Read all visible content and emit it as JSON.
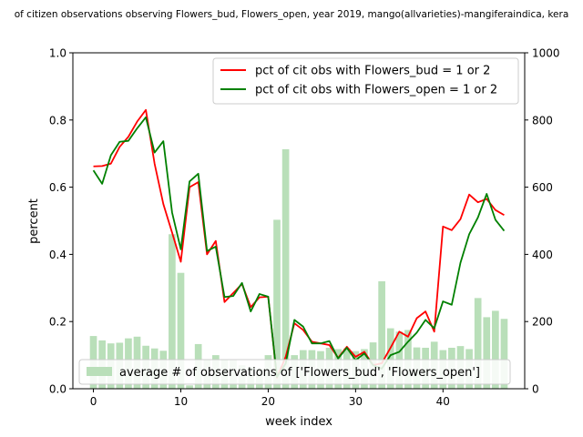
{
  "chart_data": {
    "type": "bar+line",
    "title": "of citizen observations observing Flowers_bud, Flowers_open, year 2019, mango(allvarieties)-mangiferaindica, kera",
    "xlabel": "week index",
    "ylabel": "percent",
    "xlim": [
      -2.35,
      49.35
    ],
    "ylim": [
      0,
      1.0
    ],
    "y2lim": [
      0,
      1000
    ],
    "x_ticks": [
      0,
      10,
      20,
      30,
      40
    ],
    "y_ticks": [
      0.0,
      0.2,
      0.4,
      0.6,
      0.8,
      1.0
    ],
    "y2_ticks": [
      0,
      200,
      400,
      600,
      800,
      1000
    ],
    "x": [
      0,
      1,
      2,
      3,
      4,
      5,
      6,
      7,
      8,
      9,
      10,
      11,
      12,
      13,
      14,
      15,
      16,
      17,
      18,
      19,
      20,
      21,
      22,
      23,
      24,
      25,
      26,
      27,
      28,
      29,
      30,
      31,
      32,
      33,
      34,
      35,
      36,
      37,
      38,
      39,
      40,
      41,
      42,
      43,
      44,
      45,
      46,
      47
    ],
    "series": [
      {
        "name": "pct of cit obs with Flowers_bud = 1 or 2",
        "kind": "line",
        "axis": "left",
        "color": "#ff0000",
        "values": [
          0.662,
          0.663,
          0.67,
          0.72,
          0.75,
          0.795,
          0.83,
          0.67,
          0.55,
          0.465,
          0.378,
          0.6,
          0.615,
          0.4,
          0.44,
          0.258,
          0.285,
          0.312,
          0.243,
          0.272,
          0.274,
          0.033,
          0.095,
          0.195,
          0.175,
          0.14,
          0.135,
          0.13,
          0.092,
          0.125,
          0.095,
          0.11,
          0.07,
          0.076,
          0.122,
          0.17,
          0.155,
          0.21,
          0.23,
          0.17,
          0.483,
          0.472,
          0.505,
          0.578,
          0.555,
          0.565,
          0.532,
          0.517
        ]
      },
      {
        "name": "pct of cit obs with Flowers_open = 1 or 2",
        "kind": "line",
        "axis": "left",
        "color": "#008000",
        "values": [
          0.65,
          0.61,
          0.695,
          0.735,
          0.738,
          0.775,
          0.808,
          0.703,
          0.737,
          0.525,
          0.415,
          0.617,
          0.64,
          0.41,
          0.423,
          0.273,
          0.276,
          0.315,
          0.23,
          0.282,
          0.274,
          0.035,
          0.075,
          0.205,
          0.185,
          0.135,
          0.135,
          0.142,
          0.09,
          0.122,
          0.085,
          0.105,
          0.07,
          0.06,
          0.1,
          0.11,
          0.14,
          0.167,
          0.205,
          0.18,
          0.26,
          0.25,
          0.375,
          0.46,
          0.51,
          0.58,
          0.503,
          0.47
        ]
      },
      {
        "name": "average # of observations of ['Flowers_bud', 'Flowers_open']",
        "kind": "bar",
        "axis": "right",
        "color": "#b9dfb9",
        "values": [
          157,
          144,
          135,
          137,
          150,
          155,
          128,
          120,
          113,
          460,
          345,
          10,
          133,
          88,
          100,
          88,
          85,
          70,
          65,
          60,
          100,
          503,
          713,
          100,
          115,
          115,
          112,
          122,
          118,
          120,
          112,
          118,
          138,
          320,
          180,
          170,
          175,
          123,
          122,
          140,
          115,
          122,
          127,
          118,
          270,
          213,
          232,
          208
        ]
      }
    ],
    "legend": {
      "upper": "top-right",
      "lower": "bottom-left"
    }
  }
}
